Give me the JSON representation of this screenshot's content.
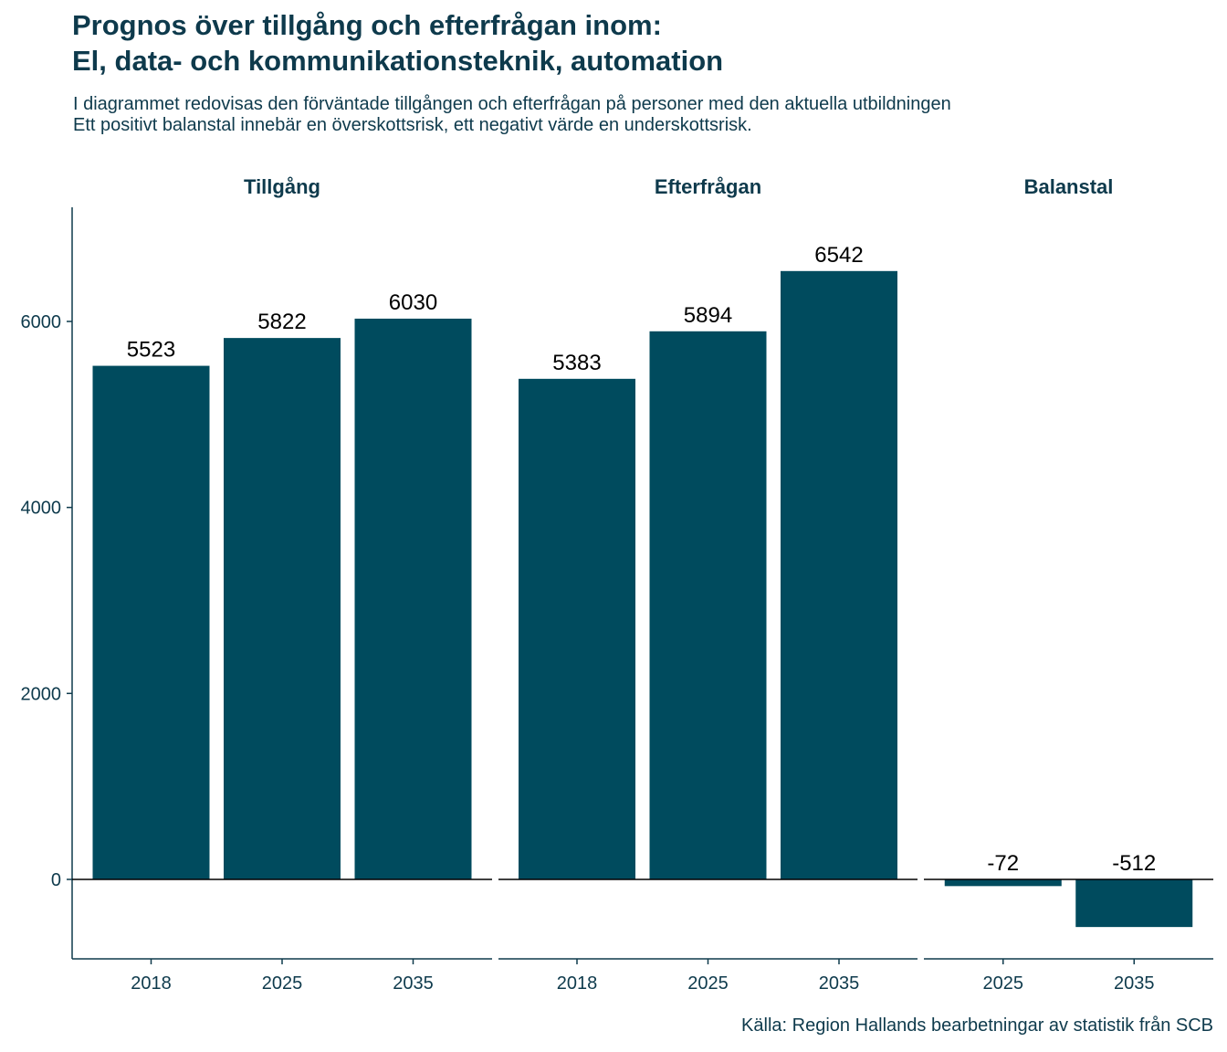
{
  "title_line1": "Prognos över tillgång och efterfrågan inom:",
  "title_line2": "El, data- och kommunikationsteknik, automation",
  "subtitle_line1": "I diagrammet redovisas den förväntade tillgången och efterfrågan på personer med den aktuella utbildningen",
  "subtitle_line2": "Ett positivt balanstal innebär en överskottsrisk, ett negativt värde en underskottsrisk.",
  "caption": "Källa: Region Hallands bearbetningar av statistik från SCB",
  "colors": {
    "bar": "#004b5e",
    "text": "#0e3a4c"
  },
  "chart_data": {
    "type": "bar",
    "ylim": [
      -850,
      7200
    ],
    "yticks": [
      0,
      2000,
      4000,
      6000
    ],
    "grid": false,
    "legend": "none",
    "facets": [
      {
        "name": "Tillgång",
        "categories": [
          "2018",
          "2025",
          "2035"
        ],
        "values": [
          5523,
          5822,
          6030
        ]
      },
      {
        "name": "Efterfrågan",
        "categories": [
          "2018",
          "2025",
          "2035"
        ],
        "values": [
          5383,
          5894,
          6542
        ]
      },
      {
        "name": "Balanstal",
        "categories": [
          "2025",
          "2035"
        ],
        "values": [
          -72,
          -512
        ]
      }
    ]
  }
}
